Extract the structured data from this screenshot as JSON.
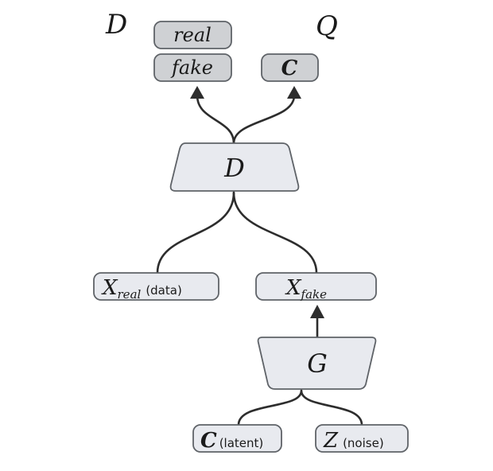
{
  "heads": {
    "d_label": "D",
    "q_label": "Q"
  },
  "outputs": {
    "real": "real",
    "fake": "fake",
    "c": "C"
  },
  "discriminator": {
    "label": "D"
  },
  "inputs": {
    "x_real": {
      "symbol": "X",
      "subscript": "real",
      "note": "(data)"
    },
    "x_fake": {
      "symbol": "X",
      "subscript": "fake"
    }
  },
  "generator": {
    "label": "G"
  },
  "latents": {
    "c": {
      "symbol": "C",
      "note": "(latent)"
    },
    "z": {
      "symbol": "Z",
      "note": "(noise)"
    }
  },
  "colors": {
    "node_fill": "#e8eaef",
    "output_fill": "#cfd1d4",
    "stroke": "#5f6368",
    "wire": "#2d2d2d"
  }
}
